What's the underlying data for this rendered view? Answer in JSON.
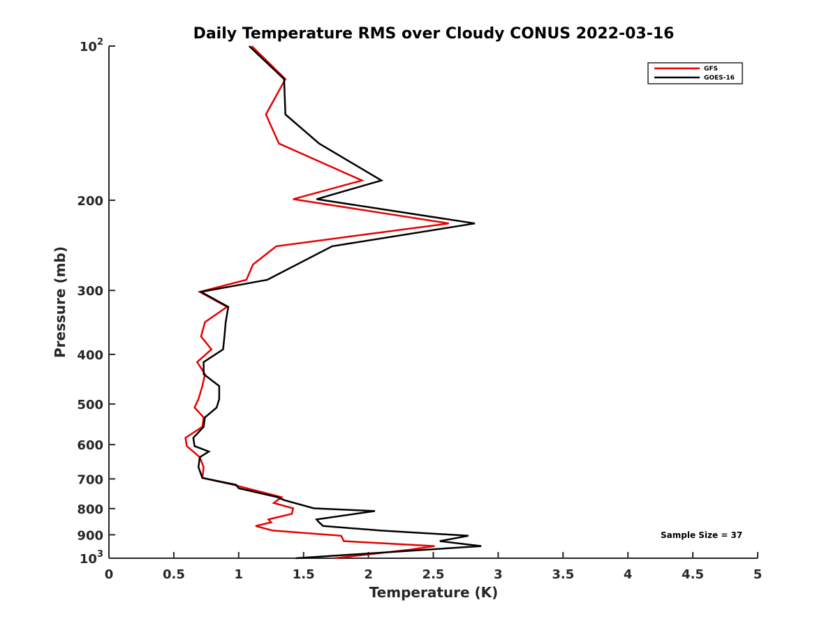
{
  "chart_data": {
    "type": "line",
    "title": "Daily Temperature RMS over Cloudy CONUS 2022-03-16",
    "xlabel": "Temperature (K)",
    "ylabel": "Pressure (mb)",
    "xlim": [
      0,
      5
    ],
    "ylim": [
      100,
      1000
    ],
    "y_scale": "log",
    "y_reversed": true,
    "grid": false,
    "legend_position": "top-right",
    "x_ticks": [
      0,
      0.5,
      1,
      1.5,
      2,
      2.5,
      3,
      3.5,
      4,
      4.5,
      5
    ],
    "x_tick_labels": [
      "0",
      "0.5",
      "1",
      "1.5",
      "2",
      "2.5",
      "3",
      "3.5",
      "4",
      "4.5",
      "5"
    ],
    "y_ticks": [
      {
        "value": 100,
        "base": "10",
        "exp": "2"
      },
      {
        "value": 200,
        "label": "200"
      },
      {
        "value": 300,
        "label": "300"
      },
      {
        "value": 400,
        "label": "400"
      },
      {
        "value": 500,
        "label": "500"
      },
      {
        "value": 600,
        "label": "600"
      },
      {
        "value": 700,
        "label": "700"
      },
      {
        "value": 800,
        "label": "800"
      },
      {
        "value": 900,
        "label": "900"
      },
      {
        "value": 1000,
        "base": "10",
        "exp": "3"
      }
    ],
    "annotation": "Sample Size = 37",
    "series": [
      {
        "name": "GFS",
        "color": "#e60000",
        "points": [
          [
            1.1,
            100
          ],
          [
            1.36,
            116
          ],
          [
            1.21,
            136
          ],
          [
            1.31,
            155
          ],
          [
            1.95,
            183
          ],
          [
            1.42,
            199
          ],
          [
            2.62,
            222
          ],
          [
            1.29,
            246
          ],
          [
            1.11,
            267
          ],
          [
            1.06,
            286
          ],
          [
            0.7,
            302
          ],
          [
            0.91,
            323
          ],
          [
            0.74,
            346
          ],
          [
            0.71,
            369
          ],
          [
            0.79,
            391
          ],
          [
            0.68,
            414
          ],
          [
            0.74,
            437
          ],
          [
            0.72,
            461
          ],
          [
            0.69,
            489
          ],
          [
            0.66,
            508
          ],
          [
            0.73,
            531
          ],
          [
            0.72,
            554
          ],
          [
            0.59,
            582
          ],
          [
            0.6,
            604
          ],
          [
            0.7,
            635
          ],
          [
            0.73,
            664
          ],
          [
            0.72,
            697
          ],
          [
            0.96,
            719
          ],
          [
            1.33,
            760
          ],
          [
            1.27,
            780
          ],
          [
            1.42,
            799
          ],
          [
            1.41,
            819
          ],
          [
            1.23,
            840
          ],
          [
            1.25,
            851
          ],
          [
            1.13,
            865
          ],
          [
            1.26,
            883
          ],
          [
            1.79,
            904
          ],
          [
            1.81,
            926
          ],
          [
            2.51,
            947
          ],
          [
            2.32,
            962
          ],
          [
            1.74,
            1000
          ]
        ]
      },
      {
        "name": "GOES-16",
        "color": "#000000",
        "points": [
          [
            1.08,
            100
          ],
          [
            1.35,
            116
          ],
          [
            1.36,
            136
          ],
          [
            1.62,
            155
          ],
          [
            2.1,
            183
          ],
          [
            1.6,
            199
          ],
          [
            2.82,
            222
          ],
          [
            1.72,
            246
          ],
          [
            1.22,
            286
          ],
          [
            0.71,
            302
          ],
          [
            0.92,
            323
          ],
          [
            0.9,
            346
          ],
          [
            0.89,
            369
          ],
          [
            0.88,
            391
          ],
          [
            0.73,
            414
          ],
          [
            0.73,
            437
          ],
          [
            0.85,
            461
          ],
          [
            0.85,
            489
          ],
          [
            0.83,
            508
          ],
          [
            0.74,
            531
          ],
          [
            0.73,
            554
          ],
          [
            0.65,
            582
          ],
          [
            0.66,
            604
          ],
          [
            0.77,
            619
          ],
          [
            0.7,
            635
          ],
          [
            0.69,
            664
          ],
          [
            0.72,
            697
          ],
          [
            0.98,
            719
          ],
          [
            1.0,
            730
          ],
          [
            1.3,
            760
          ],
          [
            1.35,
            770
          ],
          [
            1.58,
            799
          ],
          [
            2.05,
            809
          ],
          [
            1.6,
            840
          ],
          [
            1.62,
            851
          ],
          [
            1.65,
            865
          ],
          [
            2.09,
            883
          ],
          [
            2.77,
            904
          ],
          [
            2.55,
            926
          ],
          [
            2.87,
            947
          ],
          [
            2.45,
            962
          ],
          [
            1.44,
            1000
          ]
        ]
      }
    ]
  }
}
